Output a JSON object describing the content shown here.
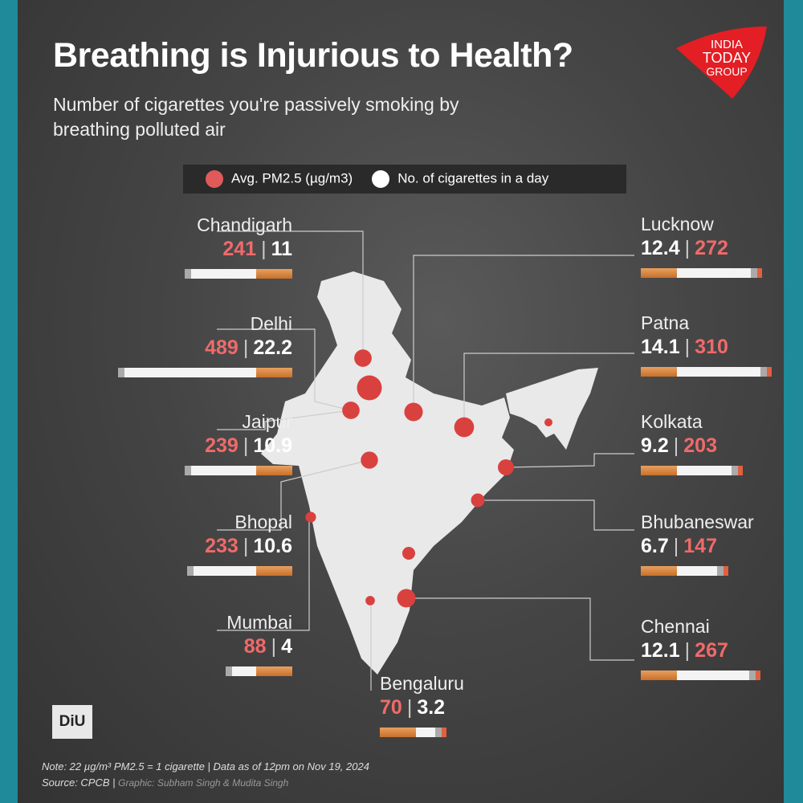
{
  "header": {
    "title": "Breathing is Injurious to Health?",
    "subtitle": "Number of cigarettes you're passively smoking by breathing polluted air",
    "logo": "INDIA TODAY GROUP"
  },
  "legend": {
    "pm": "Avg. PM2.5 (µg/m3)",
    "cig": "No. of cigarettes in a day"
  },
  "colors": {
    "pm": "#e05a5a",
    "cig": "#ffffff",
    "accent": "#e31e24"
  },
  "chart_data": {
    "type": "bubble-map",
    "title": "Breathing is Injurious to Health?",
    "series": [
      {
        "city": "Chandigarh",
        "pm25": 241,
        "cigarettes": 11
      },
      {
        "city": "Delhi",
        "pm25": 489,
        "cigarettes": 22.2
      },
      {
        "city": "Jaipur",
        "pm25": 239,
        "cigarettes": 10.9
      },
      {
        "city": "Bhopal",
        "pm25": 233,
        "cigarettes": 10.6
      },
      {
        "city": "Mumbai",
        "pm25": 88,
        "cigarettes": 4
      },
      {
        "city": "Bengaluru",
        "pm25": 70,
        "cigarettes": 3.2
      },
      {
        "city": "Lucknow",
        "pm25": 272,
        "cigarettes": 12.4
      },
      {
        "city": "Patna",
        "pm25": 310,
        "cigarettes": 14.1
      },
      {
        "city": "Kolkata",
        "pm25": 203,
        "cigarettes": 9.2
      },
      {
        "city": "Bhubaneswar",
        "pm25": 147,
        "cigarettes": 6.7
      },
      {
        "city": "Chennai",
        "pm25": 267,
        "cigarettes": 12.1
      }
    ]
  },
  "footer": {
    "diu": "DiU",
    "note": "Note: 22 µg/m³ PM2.5 = 1 cigarette | Data as of 12pm on Nov 19, 2024",
    "source": "Source: CPCB |",
    "graphic": "Graphic: Subham Singh & Mudita Singh"
  }
}
